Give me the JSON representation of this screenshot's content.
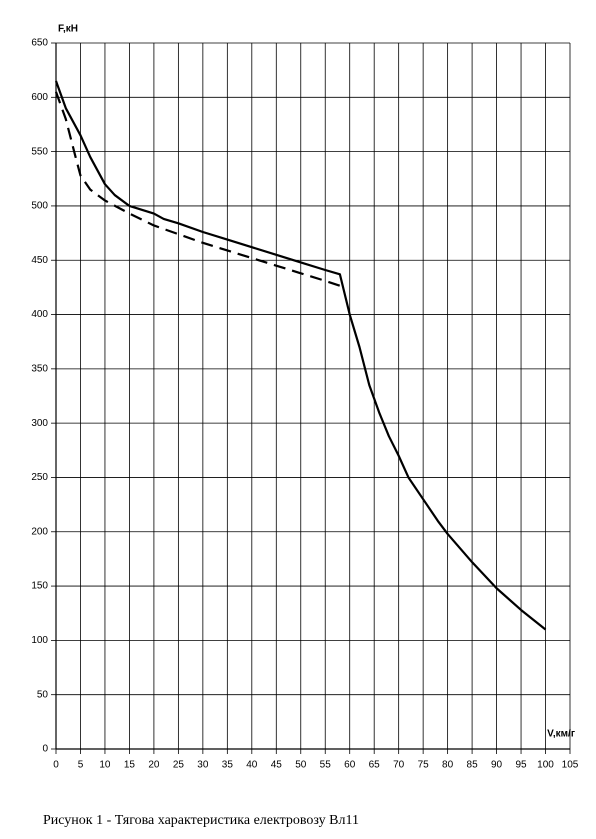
{
  "chart_data": {
    "type": "line",
    "xlabel": "V,км/г",
    "ylabel": "F,кН",
    "caption": "Рисунок 1 - Тягова характеристика електровозу Вл11",
    "xlim": [
      0,
      105
    ],
    "xticks": [
      0,
      5,
      10,
      15,
      20,
      25,
      30,
      35,
      40,
      45,
      50,
      55,
      60,
      65,
      70,
      75,
      80,
      85,
      90,
      95,
      100,
      105
    ],
    "ylim": [
      0,
      650
    ],
    "yticks": [
      0,
      50,
      100,
      150,
      200,
      250,
      300,
      350,
      400,
      450,
      500,
      550,
      600,
      650
    ],
    "grid": true,
    "series": [
      {
        "color": "#000000",
        "dash": false,
        "x": [
          0,
          2,
          5,
          7,
          10,
          12,
          15,
          20,
          22,
          25,
          30,
          35,
          40,
          45,
          50,
          55,
          58,
          60,
          62,
          64,
          66,
          68,
          70,
          72,
          75,
          78,
          80,
          85,
          90,
          95,
          100
        ],
        "values": [
          615,
          590,
          565,
          545,
          520,
          510,
          500,
          493,
          488,
          484,
          476,
          469,
          462,
          455,
          448,
          441,
          437,
          400,
          370,
          335,
          310,
          288,
          270,
          250,
          230,
          210,
          198,
          172,
          148,
          128,
          110
        ]
      },
      {
        "color": "#000000",
        "dash": true,
        "x": [
          0,
          2,
          4,
          5,
          7,
          10,
          15,
          20,
          25,
          30,
          35,
          40,
          45,
          50,
          55,
          59
        ],
        "values": [
          605,
          580,
          545,
          528,
          515,
          505,
          493,
          482,
          474,
          466,
          459,
          452,
          445,
          438,
          431,
          425
        ]
      }
    ]
  }
}
